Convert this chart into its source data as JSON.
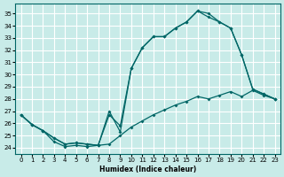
{
  "xlabel": "Humidex (Indice chaleur)",
  "background_color": "#c8ebe8",
  "grid_color": "#b0d8d4",
  "line_color": "#006666",
  "xlim": [
    -0.5,
    23.5
  ],
  "ylim": [
    23.5,
    35.8
  ],
  "yticks": [
    24,
    25,
    26,
    27,
    28,
    29,
    30,
    31,
    32,
    33,
    34,
    35
  ],
  "xticks": [
    0,
    1,
    2,
    3,
    4,
    5,
    6,
    7,
    8,
    9,
    10,
    11,
    12,
    13,
    14,
    15,
    16,
    17,
    18,
    19,
    20,
    21,
    22,
    23
  ],
  "line1_y": [
    26.7,
    25.9,
    25.4,
    24.8,
    24.3,
    24.4,
    24.3,
    24.2,
    27.0,
    25.3,
    30.5,
    32.2,
    33.1,
    33.1,
    33.8,
    34.3,
    35.2,
    35.0,
    34.3,
    33.8,
    31.6,
    28.8,
    28.4,
    28.0
  ],
  "line2_y": [
    26.7,
    25.9,
    25.4,
    24.8,
    24.3,
    24.4,
    24.3,
    24.2,
    26.7,
    25.8,
    30.5,
    32.2,
    33.1,
    33.1,
    33.8,
    34.3,
    35.2,
    34.7,
    34.3,
    33.8,
    31.6,
    28.8,
    28.4,
    28.0
  ],
  "line3_y": [
    26.7,
    25.9,
    25.4,
    24.5,
    24.1,
    24.2,
    24.1,
    24.2,
    24.3,
    25.0,
    25.7,
    26.2,
    26.7,
    27.1,
    27.5,
    27.8,
    28.2,
    28.0,
    28.3,
    28.6,
    28.2,
    28.7,
    28.3,
    28.0
  ]
}
